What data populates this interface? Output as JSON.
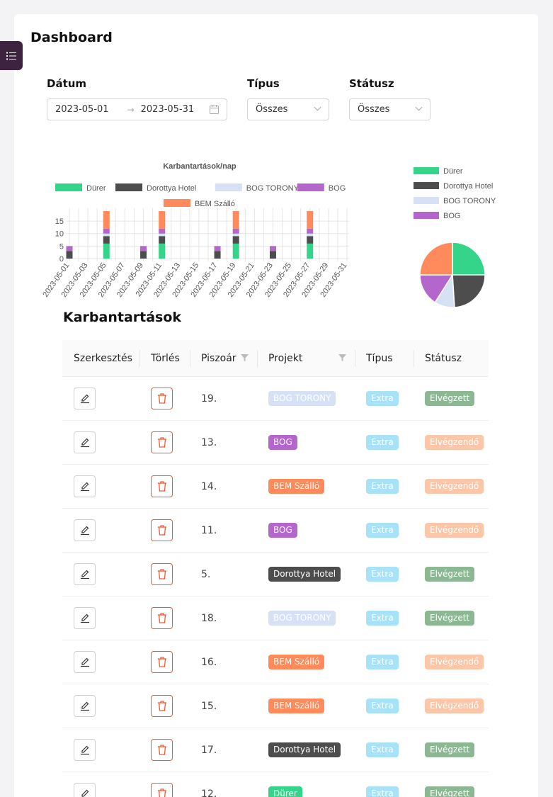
{
  "page": {
    "title": "Dashboard"
  },
  "filters": {
    "date_label": "Dátum",
    "date_from": "2023-05-01",
    "date_arrow": "→",
    "date_to": "2023-05-31",
    "type_label": "Típus",
    "type_value": "Összes",
    "status_label": "Státusz",
    "status_value": "Összes"
  },
  "colors": {
    "Dürer": "#34d589",
    "Dorottya Hotel": "#4d4d4d",
    "BOG TORONY": "#d6e1f5",
    "BOG": "#b566cd",
    "BEM Szálló": "#ff8a5c",
    "Extra": "#a8e2f9",
    "Elvégzett": "#8bb893",
    "Elvégzendő": "#fcc6a8"
  },
  "chart_data": [
    {
      "type": "bar",
      "stacked": true,
      "title": "Karbantartások/nap",
      "x": [
        "2023-05-01",
        "2023-05-02",
        "2023-05-03",
        "2023-05-04",
        "2023-05-05",
        "2023-05-06",
        "2023-05-07",
        "2023-05-08",
        "2023-05-09",
        "2023-05-10",
        "2023-05-11",
        "2023-05-12",
        "2023-05-13",
        "2023-05-14",
        "2023-05-15",
        "2023-05-16",
        "2023-05-17",
        "2023-05-18",
        "2023-05-19",
        "2023-05-20",
        "2023-05-21",
        "2023-05-22",
        "2023-05-23",
        "2023-05-24",
        "2023-05-25",
        "2023-05-26",
        "2023-05-27",
        "2023-05-28",
        "2023-05-29",
        "2023-05-30",
        "2023-05-31"
      ],
      "tick_labels": [
        "2023-05-01",
        "2023-05-03",
        "2023-05-05",
        "2023-05-07",
        "2023-05-09",
        "2023-05-11",
        "2023-05-13",
        "2023-05-15",
        "2023-05-17",
        "2023-05-19",
        "2023-05-21",
        "2023-05-23",
        "2023-05-25",
        "2023-05-27",
        "2023-05-29",
        "2023-05-31"
      ],
      "y_ticks": [
        "0",
        "5",
        "10",
        "15"
      ],
      "ylim": [
        0,
        19
      ],
      "grid": true,
      "legend_position": "top",
      "series": [
        {
          "name": "Dürer",
          "values": [
            0,
            0,
            0,
            0,
            6,
            0,
            0,
            0,
            0,
            0,
            6,
            0,
            0,
            0,
            0,
            0,
            0,
            0,
            6,
            0,
            0,
            0,
            0,
            0,
            0,
            0,
            6,
            0,
            0,
            0,
            0
          ]
        },
        {
          "name": "Dorottya Hotel",
          "values": [
            3,
            0,
            0,
            0,
            3,
            0,
            0,
            0,
            3,
            0,
            3,
            0,
            0,
            0,
            0,
            0,
            3,
            0,
            3,
            0,
            0,
            0,
            3,
            0,
            0,
            0,
            3,
            0,
            0,
            0,
            0
          ]
        },
        {
          "name": "BOG TORONY",
          "values": [
            0,
            0,
            0,
            0,
            1,
            0,
            0,
            0,
            0,
            0,
            1,
            0,
            0,
            0,
            0,
            0,
            0,
            0,
            1,
            0,
            0,
            0,
            0,
            0,
            0,
            0,
            1,
            0,
            0,
            0,
            0
          ]
        },
        {
          "name": "BOG",
          "values": [
            2,
            0,
            0,
            0,
            2,
            0,
            0,
            0,
            2,
            0,
            2,
            0,
            0,
            0,
            0,
            0,
            2,
            0,
            2,
            0,
            0,
            0,
            2,
            0,
            0,
            0,
            2,
            0,
            0,
            0,
            0
          ]
        },
        {
          "name": "BEM Szálló",
          "values": [
            0,
            0,
            0,
            0,
            7,
            0,
            0,
            0,
            0,
            0,
            7,
            0,
            0,
            0,
            0,
            0,
            0,
            0,
            7,
            0,
            0,
            0,
            0,
            0,
            0,
            0,
            7,
            0,
            0,
            0,
            0
          ]
        }
      ]
    },
    {
      "type": "pie",
      "legend_position": "top",
      "slices": [
        {
          "name": "Dürer",
          "value": 25
        },
        {
          "name": "Dorottya Hotel",
          "value": 24
        },
        {
          "name": "BOG TORONY",
          "value": 10
        },
        {
          "name": "BOG",
          "value": 16
        },
        {
          "name": "BEM Szálló",
          "value": 25
        }
      ],
      "legend": [
        "Dürer",
        "Dorottya Hotel",
        "BOG TORONY",
        "BOG"
      ]
    }
  ],
  "table": {
    "title": "Karbantartások",
    "columns": [
      "Szerkesztés",
      "Törlés",
      "Piszoár",
      "Projekt",
      "Típus",
      "Státusz"
    ],
    "rows": [
      {
        "num": "19.",
        "project": "BOG TORONY",
        "type": "Extra",
        "status": "Elvégzett"
      },
      {
        "num": "13.",
        "project": "BOG",
        "type": "Extra",
        "status": "Elvégzendő"
      },
      {
        "num": "14.",
        "project": "BEM Szálló",
        "type": "Extra",
        "status": "Elvégzendő"
      },
      {
        "num": "11.",
        "project": "BOG",
        "type": "Extra",
        "status": "Elvégzendő"
      },
      {
        "num": "5.",
        "project": "Dorottya Hotel",
        "type": "Extra",
        "status": "Elvégzett"
      },
      {
        "num": "18.",
        "project": "BOG TORONY",
        "type": "Extra",
        "status": "Elvégzett"
      },
      {
        "num": "16.",
        "project": "BEM Szálló",
        "type": "Extra",
        "status": "Elvégzendő"
      },
      {
        "num": "15.",
        "project": "BEM Szálló",
        "type": "Extra",
        "status": "Elvégzendő"
      },
      {
        "num": "17.",
        "project": "Dorottya Hotel",
        "type": "Extra",
        "status": "Elvégzett"
      },
      {
        "num": "12.",
        "project": "Dürer",
        "type": "Extra",
        "status": "Elvégzett"
      }
    ]
  },
  "icons": {
    "menu": "list-icon",
    "calendar": "calendar-icon",
    "edit": "edit-icon",
    "delete": "trash-icon",
    "filter": "filter-icon"
  }
}
